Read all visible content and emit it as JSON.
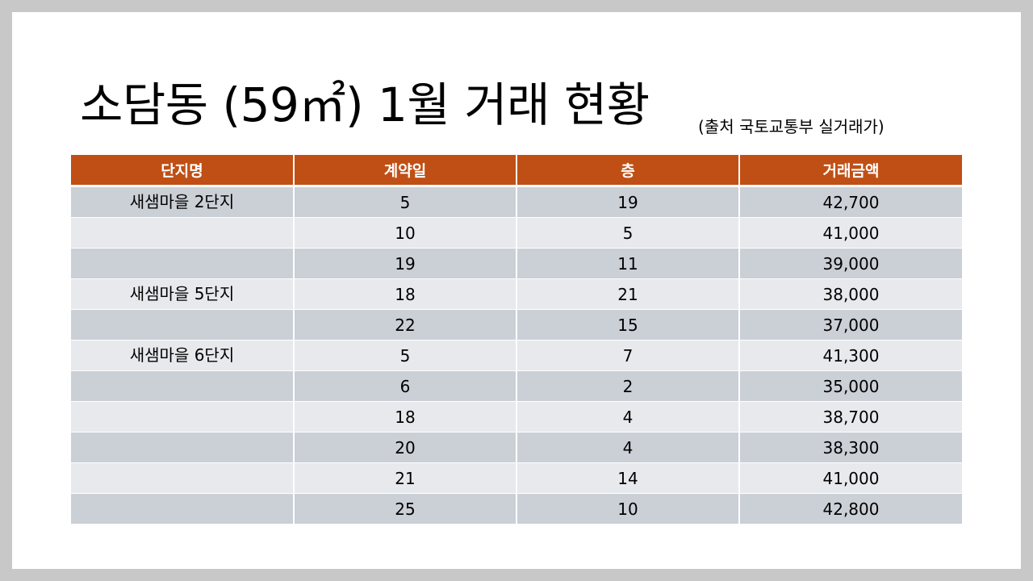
{
  "slide": {
    "title": "소담동 (59㎡) 1월 거래 현황",
    "source": "(출처 국토교통부 실거래가)"
  },
  "table": {
    "headers": [
      "단지명",
      "계약일",
      "층",
      "거래금액"
    ],
    "rows": [
      {
        "complex": "새샘마을 2단지",
        "day": "5",
        "floor": "19",
        "price": "42,700"
      },
      {
        "complex": "",
        "day": "10",
        "floor": "5",
        "price": "41,000"
      },
      {
        "complex": "",
        "day": "19",
        "floor": "11",
        "price": "39,000"
      },
      {
        "complex": "새샘마을 5단지",
        "day": "18",
        "floor": "21",
        "price": "38,000"
      },
      {
        "complex": "",
        "day": "22",
        "floor": "15",
        "price": "37,000"
      },
      {
        "complex": "새샘마을 6단지",
        "day": "5",
        "floor": "7",
        "price": "41,300"
      },
      {
        "complex": "",
        "day": "6",
        "floor": "2",
        "price": "35,000"
      },
      {
        "complex": "",
        "day": "18",
        "floor": "4",
        "price": "38,700"
      },
      {
        "complex": "",
        "day": "20",
        "floor": "4",
        "price": "38,300"
      },
      {
        "complex": "",
        "day": "21",
        "floor": "14",
        "price": "41,000"
      },
      {
        "complex": "",
        "day": "25",
        "floor": "10",
        "price": "42,800"
      }
    ]
  }
}
